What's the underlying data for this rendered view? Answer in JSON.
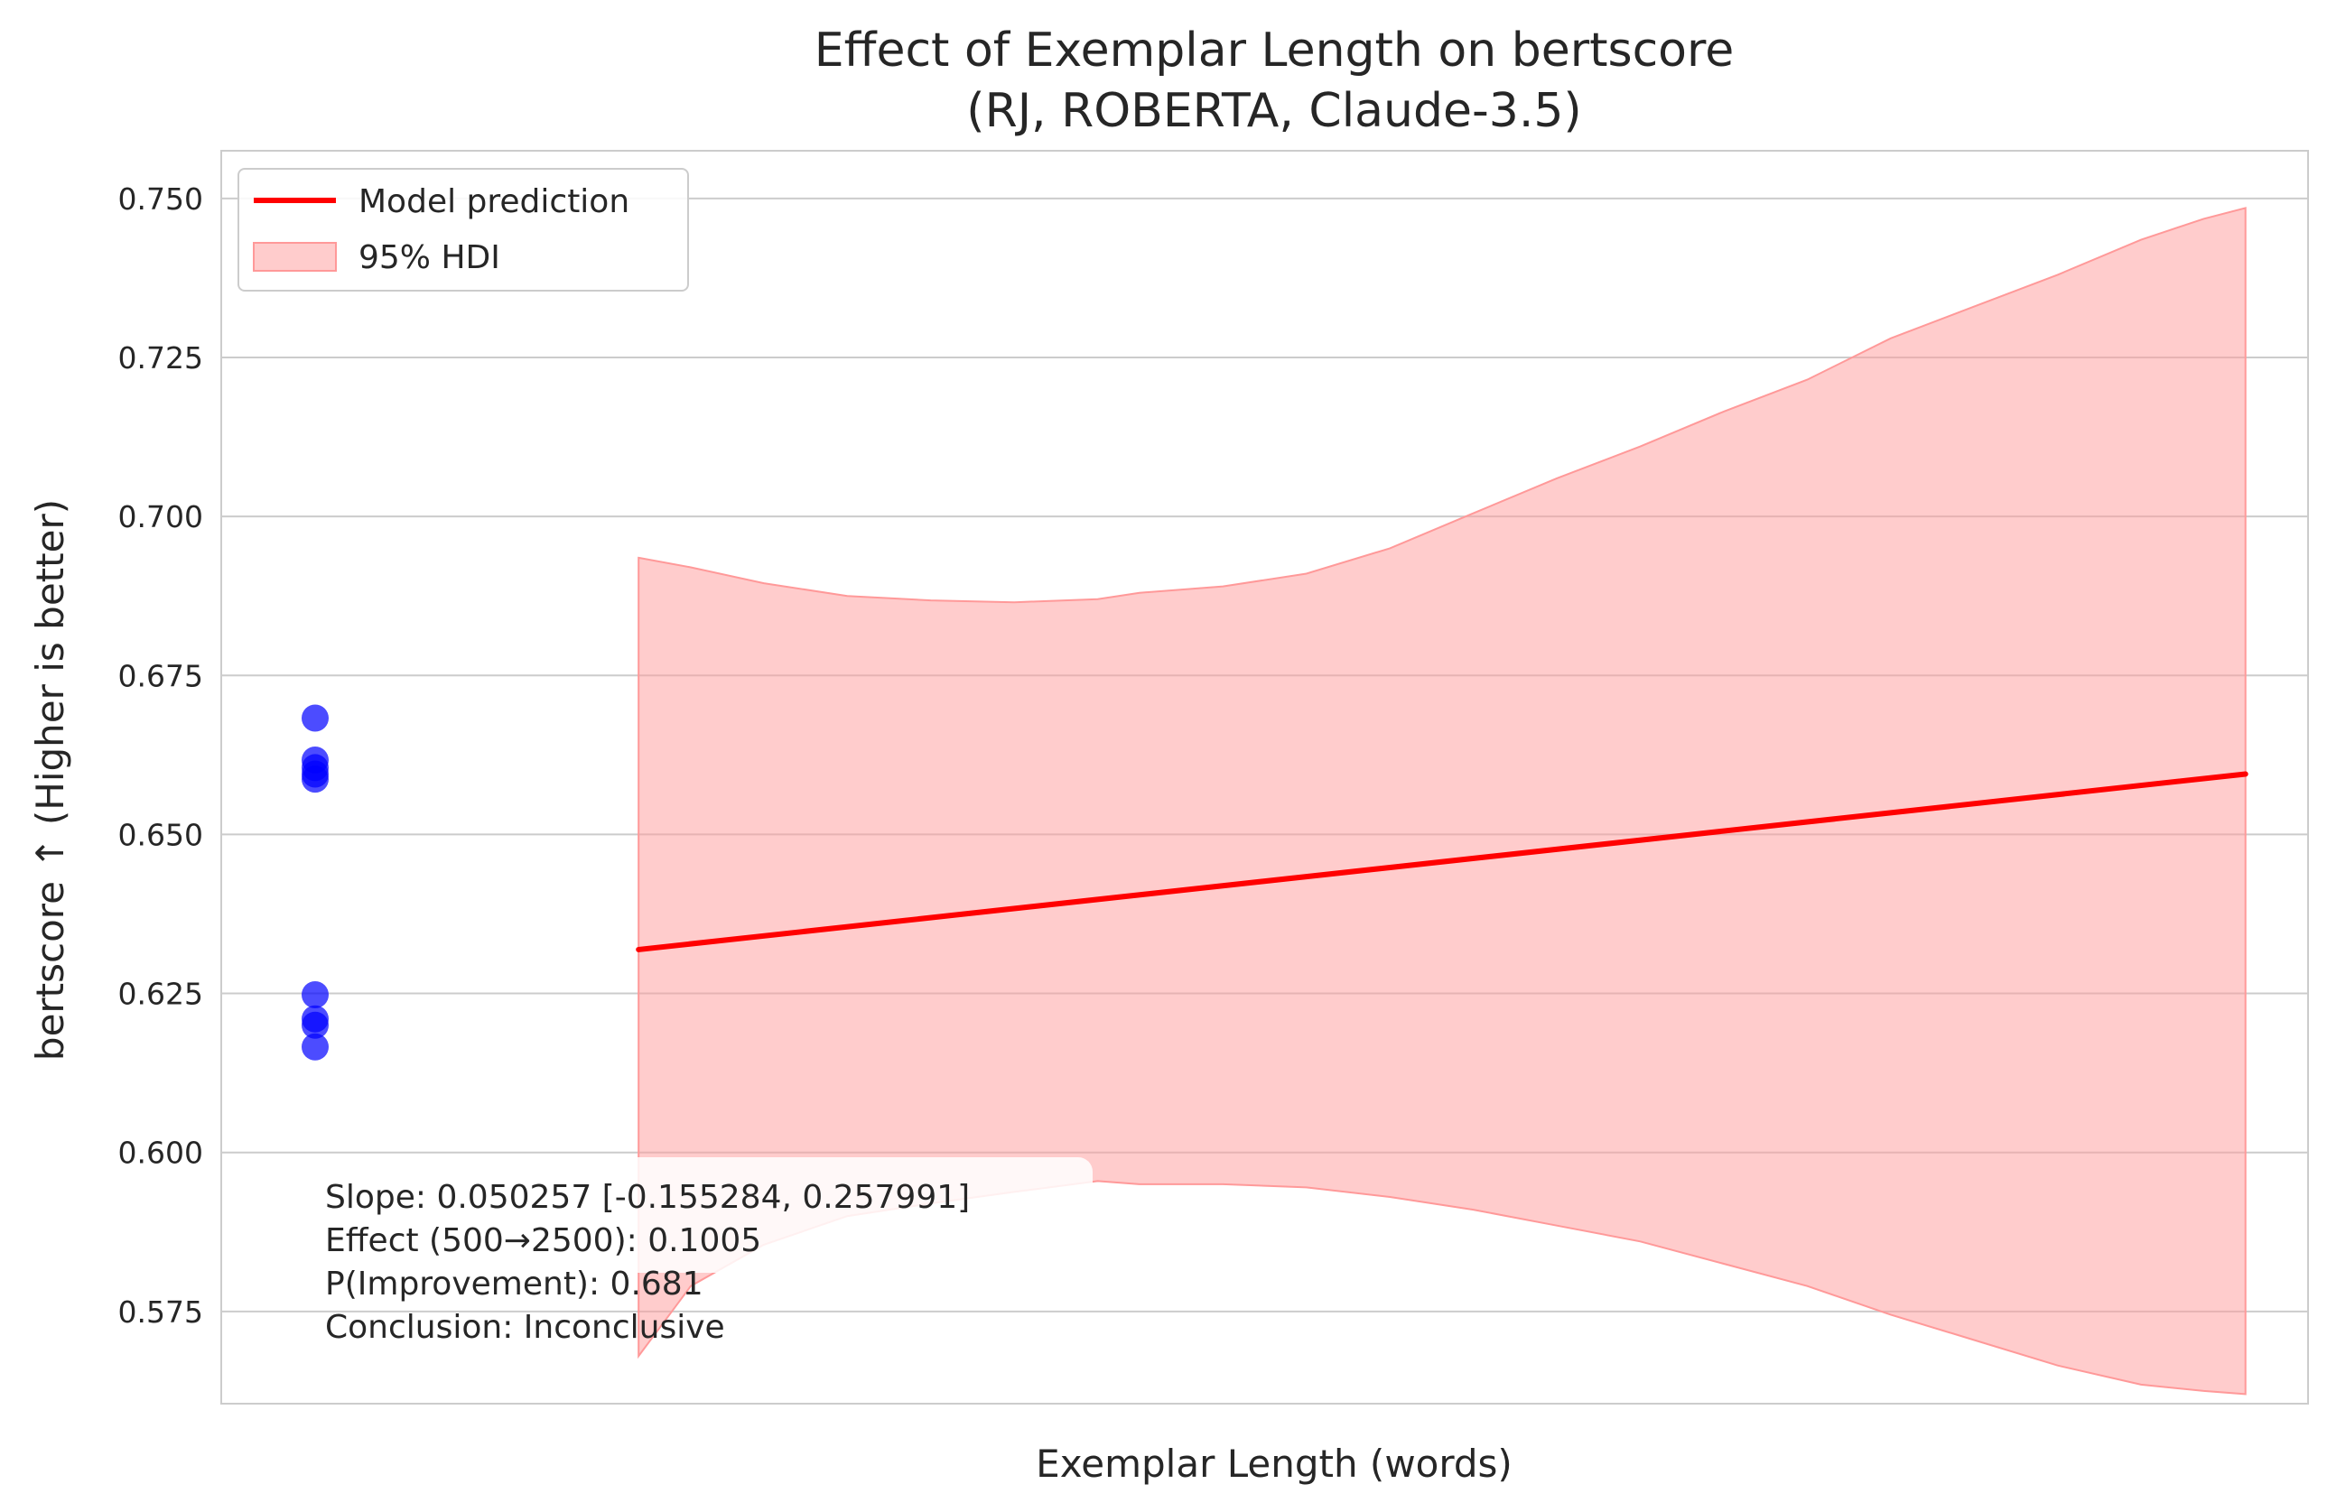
{
  "chart_data": {
    "type": "scatter",
    "title": "Effect of Exemplar Length on bertscore",
    "subtitle": "(RJ, ROBERTA, Claude-3.5)",
    "xlabel": "Exemplar Length (words)",
    "ylabel": "bertscore ↑ (Higher is better)",
    "xlim": [
      0,
      100
    ],
    "ylim": [
      0.5605,
      0.7575
    ],
    "yticks": [
      0.575,
      0.6,
      0.625,
      0.65,
      0.675,
      0.7,
      0.725,
      0.75
    ],
    "ytick_labels": [
      "0.575",
      "0.600",
      "0.625",
      "0.650",
      "0.675",
      "0.700",
      "0.725",
      "0.750"
    ],
    "grid": "horizontal",
    "legend_position": "top-left",
    "legend": [
      {
        "label": "Model prediction",
        "kind": "line",
        "color": "#ff0000"
      },
      {
        "label": "95% HDI",
        "kind": "patch",
        "color": "#ff9999"
      }
    ],
    "scatter": {
      "name": "",
      "color": "#0000ff",
      "points": [
        {
          "x": 4.5,
          "y": 0.6683
        },
        {
          "x": 4.5,
          "y": 0.6617
        },
        {
          "x": 4.5,
          "y": 0.6605
        },
        {
          "x": 4.5,
          "y": 0.6595
        },
        {
          "x": 4.5,
          "y": 0.6587
        },
        {
          "x": 4.5,
          "y": 0.6248
        },
        {
          "x": 4.5,
          "y": 0.621
        },
        {
          "x": 4.5,
          "y": 0.62
        },
        {
          "x": 4.5,
          "y": 0.6166
        }
      ]
    },
    "prediction": {
      "name": "Model prediction",
      "color": "#ff0000",
      "x": [
        20,
        97
      ],
      "y": [
        0.6319,
        0.6595
      ]
    },
    "hdi": {
      "name": "95% HDI",
      "color": "#ff9999",
      "x": [
        20,
        22.5,
        26,
        30,
        34,
        38,
        42,
        44,
        48,
        52,
        56,
        60,
        64,
        68,
        72,
        76,
        80,
        84,
        88,
        92,
        95,
        97
      ],
      "upper": [
        0.6935,
        0.692,
        0.6895,
        0.6875,
        0.6868,
        0.6865,
        0.687,
        0.688,
        0.689,
        0.691,
        0.695,
        0.7005,
        0.706,
        0.711,
        0.7165,
        0.7215,
        0.728,
        0.733,
        0.738,
        0.7435,
        0.7468,
        0.7485
      ],
      "lower": [
        0.568,
        0.579,
        0.5855,
        0.59,
        0.592,
        0.5938,
        0.5955,
        0.595,
        0.595,
        0.5945,
        0.593,
        0.591,
        0.5885,
        0.586,
        0.5825,
        0.579,
        0.5745,
        0.5705,
        0.5665,
        0.5635,
        0.5625,
        0.562
      ]
    },
    "annotation": [
      "Slope: 0.050257 [-0.155284, 0.257991]",
      "Effect (500→2500): 0.1005",
      "P(Improvement): 0.681",
      "Conclusion: Inconclusive"
    ]
  }
}
